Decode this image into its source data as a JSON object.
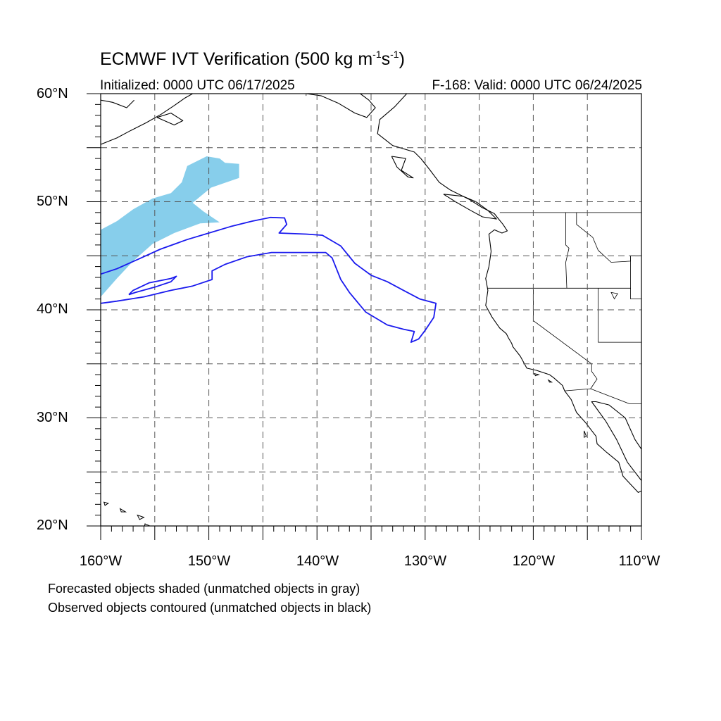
{
  "title": {
    "main": "ECMWF IVT Verification (500 kg m",
    "exp1": "-1",
    "mid": "s",
    "exp2": "-1",
    "end": ")"
  },
  "init_label": "Initialized: 0000 UTC 06/17/2025",
  "valid_label": "F-168: Valid: 0000 UTC 06/24/2025",
  "lat_labels": [
    "60°N",
    "50°N",
    "40°N",
    "30°N",
    "20°N"
  ],
  "lon_labels": [
    "160°W",
    "150°W",
    "140°W",
    "130°W",
    "120°W",
    "110°W"
  ],
  "caption_lines": [
    "Forecasted objects shaded (unmatched objects in gray)",
    "Observed objects contoured (unmatched objects in black)"
  ],
  "map_extent": {
    "lon": [
      -160,
      -110
    ],
    "lat": [
      20,
      60
    ]
  },
  "colors": {
    "forecast_fill": "#87ceeb",
    "observed_contour": "#1a1aee",
    "coastline": "#000000",
    "grid": "#555555"
  },
  "forecast_object": [
    [
      -160,
      47.4
    ],
    [
      -158.5,
      48.2
    ],
    [
      -157,
      49.3
    ],
    [
      -155.2,
      50.3
    ],
    [
      -153.5,
      50.8
    ],
    [
      -152.5,
      51.8
    ],
    [
      -152,
      53.3
    ],
    [
      -150.2,
      54.2
    ],
    [
      -149,
      54.0
    ],
    [
      -148.5,
      53.6
    ],
    [
      -147.2,
      53.5
    ],
    [
      -147.2,
      52.2
    ],
    [
      -149.8,
      51.3
    ],
    [
      -151.5,
      49.9
    ],
    [
      -150.5,
      49.1
    ],
    [
      -149.0,
      48.1
    ],
    [
      -150.8,
      48.0
    ],
    [
      -153.2,
      47.1
    ],
    [
      -155.2,
      46.1
    ],
    [
      -157,
      44.5
    ],
    [
      -158.5,
      42.9
    ],
    [
      -160,
      41.2
    ]
  ],
  "observed_object": [
    [
      -160,
      43.3
    ],
    [
      -158.5,
      43.8
    ],
    [
      -156.5,
      44.7
    ],
    [
      -154.5,
      45.6
    ],
    [
      -152,
      46.5
    ],
    [
      -150,
      47.1
    ],
    [
      -148,
      47.7
    ],
    [
      -146,
      48.2
    ],
    [
      -144.3,
      48.55
    ],
    [
      -143.0,
      48.5
    ],
    [
      -142.8,
      47.9
    ],
    [
      -143.5,
      47.1
    ],
    [
      -141.0,
      47.0
    ],
    [
      -139.5,
      46.9
    ],
    [
      -137.8,
      45.9
    ],
    [
      -136.5,
      44.3
    ],
    [
      -135,
      43.2
    ],
    [
      -133.5,
      42.6
    ],
    [
      -132.0,
      41.8
    ],
    [
      -130.5,
      41.0
    ],
    [
      -129.0,
      40.6
    ],
    [
      -129.2,
      39.3
    ],
    [
      -130.0,
      38.1
    ],
    [
      -130.6,
      37.3
    ],
    [
      -131.3,
      37.0
    ],
    [
      -131.0,
      38.0
    ],
    [
      -132,
      38.2
    ],
    [
      -133.5,
      38.6
    ],
    [
      -135.5,
      39.8
    ],
    [
      -137.0,
      41.6
    ],
    [
      -137.8,
      42.8
    ],
    [
      -138.6,
      44.8
    ],
    [
      -139.2,
      45.3
    ],
    [
      -141,
      45.3
    ],
    [
      -144.2,
      45.3
    ],
    [
      -146.5,
      44.9
    ],
    [
      -148.5,
      44.2
    ],
    [
      -149.7,
      43.6
    ],
    [
      -149.7,
      42.8
    ],
    [
      -151.5,
      42.2
    ],
    [
      -153.5,
      41.8
    ],
    [
      -156,
      41.2
    ],
    [
      -158.5,
      40.8
    ],
    [
      -160,
      40.6
    ]
  ],
  "observed_inner": [
    [
      -157.4,
      41.4
    ],
    [
      -156.8,
      41.6
    ],
    [
      -155,
      42.1
    ],
    [
      -153.5,
      42.6
    ],
    [
      -153.0,
      43.1
    ],
    [
      -153.5,
      42.9
    ],
    [
      -155.5,
      42.5
    ],
    [
      -157.0,
      41.8
    ],
    [
      -157.4,
      41.4
    ]
  ],
  "coastlines": [
    [
      [
        -131.7,
        60
      ],
      [
        -132.8,
        58.8
      ],
      [
        -134.2,
        57.6
      ],
      [
        -134.4,
        56.3
      ],
      [
        -133.0,
        55.2
      ],
      [
        -131.0,
        54.6
      ],
      [
        -130.4,
        54.0
      ],
      [
        -129.6,
        53.0
      ],
      [
        -128.7,
        51.8
      ],
      [
        -127.7,
        51.1
      ],
      [
        -125.9,
        50.2
      ],
      [
        -124.8,
        49.5
      ],
      [
        -123.6,
        48.9
      ],
      [
        -123.2,
        48.4
      ],
      [
        -122.8,
        47.9
      ],
      [
        -122.4,
        47.3
      ],
      [
        -122.9,
        47.1
      ],
      [
        -123.6,
        47.4
      ],
      [
        -124.1,
        47.0
      ],
      [
        -124.0,
        46.2
      ],
      [
        -123.9,
        45.4
      ],
      [
        -124.1,
        44.0
      ],
      [
        -124.4,
        42.9
      ],
      [
        -124.2,
        41.8
      ],
      [
        -124.4,
        40.4
      ],
      [
        -123.8,
        39.3
      ],
      [
        -123.1,
        38.3
      ],
      [
        -122.5,
        37.8
      ],
      [
        -122.3,
        37.4
      ],
      [
        -122.0,
        36.9
      ],
      [
        -121.9,
        36.6
      ],
      [
        -121.2,
        35.7
      ],
      [
        -120.6,
        34.6
      ],
      [
        -119.7,
        34.4
      ],
      [
        -118.5,
        34.0
      ],
      [
        -118.1,
        33.7
      ],
      [
        -117.3,
        33.0
      ],
      [
        -117.1,
        32.5
      ],
      [
        -116.5,
        31.7
      ],
      [
        -116.0,
        30.5
      ],
      [
        -115.2,
        29.6
      ],
      [
        -114.2,
        28.3
      ],
      [
        -114.1,
        27.6
      ],
      [
        -113.2,
        26.8
      ],
      [
        -112.1,
        25.9
      ],
      [
        -111.7,
        24.6
      ],
      [
        -110.3,
        23.1
      ],
      [
        -109.6,
        23.4
      ],
      [
        -110.0,
        24.2
      ],
      [
        -111.3,
        25.9
      ],
      [
        -112.3,
        28.0
      ],
      [
        -113.3,
        29.7
      ],
      [
        -114.6,
        31.5
      ],
      [
        -114.2,
        31.5
      ],
      [
        -113.0,
        31.2
      ],
      [
        -111.5,
        30.0
      ],
      [
        -110.6,
        28.0
      ],
      [
        -110,
        27.1
      ]
    ],
    [
      [
        -133.1,
        54.2
      ],
      [
        -131.8,
        54.0
      ],
      [
        -132.2,
        52.9
      ],
      [
        -131.1,
        52.2
      ],
      [
        -131.6,
        52.3
      ],
      [
        -132.6,
        53.2
      ],
      [
        -133.1,
        54.2
      ]
    ],
    [
      [
        -128.3,
        50.7
      ],
      [
        -126.5,
        50.5
      ],
      [
        -125.3,
        50.0
      ],
      [
        -124.2,
        49.2
      ],
      [
        -123.4,
        48.4
      ],
      [
        -124.7,
        48.6
      ],
      [
        -125.8,
        49.2
      ],
      [
        -127.2,
        50.0
      ],
      [
        -128.3,
        50.7
      ]
    ],
    [
      [
        -160,
        55.3
      ],
      [
        -158.5,
        55.9
      ],
      [
        -157.2,
        56.6
      ],
      [
        -155.8,
        57.3
      ],
      [
        -154.4,
        58.1
      ],
      [
        -153.2,
        58.9
      ],
      [
        -152.2,
        59.6
      ],
      [
        -151.5,
        60
      ]
    ],
    [
      [
        -160,
        59.4
      ],
      [
        -158.9,
        59.2
      ],
      [
        -157.6,
        58.7
      ],
      [
        -156.9,
        59.4
      ]
    ],
    [
      [
        -154.8,
        57.8
      ],
      [
        -153.2,
        57.1
      ],
      [
        -152.4,
        57.5
      ],
      [
        -153.5,
        58.2
      ],
      [
        -154.8,
        57.8
      ]
    ],
    [
      [
        -141,
        60
      ],
      [
        -139.6,
        59.8
      ],
      [
        -138.0,
        59.1
      ],
      [
        -136.5,
        58.2
      ],
      [
        -135.4,
        57.8
      ],
      [
        -134.6,
        58.7
      ],
      [
        -135.2,
        59.4
      ],
      [
        -136.0,
        60
      ]
    ],
    [
      [
        -111.6,
        60
      ],
      [
        -110,
        60
      ]
    ]
  ],
  "islands": [
    [
      [
        -155.9,
        20.2
      ],
      [
        -155.0,
        19.8
      ],
      [
        -155.5,
        19.3
      ],
      [
        -156.0,
        19.7
      ],
      [
        -155.9,
        20.2
      ]
    ],
    [
      [
        -156.6,
        21.0
      ],
      [
        -156.0,
        20.8
      ],
      [
        -156.4,
        20.6
      ],
      [
        -156.6,
        21.0
      ]
    ],
    [
      [
        -158.2,
        21.6
      ],
      [
        -157.7,
        21.3
      ],
      [
        -158.1,
        21.3
      ],
      [
        -158.2,
        21.6
      ]
    ],
    [
      [
        -159.7,
        22.2
      ],
      [
        -159.3,
        22.1
      ],
      [
        -159.6,
        21.9
      ],
      [
        -159.7,
        22.2
      ]
    ],
    [
      [
        -118.6,
        33.5
      ],
      [
        -118.3,
        33.3
      ],
      [
        -118.5,
        33.3
      ],
      [
        -118.6,
        33.5
      ]
    ],
    [
      [
        -119.9,
        34.1
      ],
      [
        -119.5,
        34.0
      ],
      [
        -119.8,
        33.9
      ],
      [
        -119.9,
        34.1
      ]
    ],
    [
      [
        -115.3,
        28.8
      ],
      [
        -115.1,
        28.3
      ],
      [
        -115.3,
        28.2
      ],
      [
        -115.3,
        28.8
      ]
    ]
  ],
  "borders": [
    [
      [
        -123.1,
        49
      ],
      [
        -110,
        49
      ]
    ],
    [
      [
        -124.2,
        42
      ],
      [
        -111,
        42
      ]
    ],
    [
      [
        -120,
        42
      ],
      [
        -120,
        39
      ],
      [
        -114.6,
        35.0
      ]
    ],
    [
      [
        -117.0,
        49
      ],
      [
        -117.0,
        46.0
      ],
      [
        -116.7,
        45.7
      ],
      [
        -117.0,
        44.4
      ],
      [
        -116.9,
        42
      ]
    ],
    [
      [
        -116.0,
        49
      ],
      [
        -116.0,
        47.9
      ],
      [
        -114.5,
        46.7
      ],
      [
        -114.0,
        45.5
      ],
      [
        -112.8,
        44.4
      ],
      [
        -111.0,
        44.5
      ],
      [
        -111,
        45.0
      ],
      [
        -110,
        45
      ]
    ],
    [
      [
        -111,
        45
      ],
      [
        -111,
        41
      ],
      [
        -110,
        41
      ]
    ],
    [
      [
        -114.0,
        42
      ],
      [
        -114.0,
        37.0
      ],
      [
        -110,
        37.0
      ]
    ],
    [
      [
        -114.6,
        35.0
      ],
      [
        -114.6,
        34.3
      ],
      [
        -114.1,
        33.6
      ],
      [
        -114.7,
        32.7
      ]
    ],
    [
      [
        -117.1,
        32.5
      ],
      [
        -114.7,
        32.7
      ],
      [
        -111.1,
        31.3
      ],
      [
        -110,
        31.3
      ]
    ],
    [
      [
        -130,
        56.0
      ],
      [
        -130.0,
        55.3
      ]
    ],
    [
      [
        -141,
        60
      ],
      [
        -141,
        59.8
      ]
    ]
  ],
  "lakes": [
    [
      [
        -112.8,
        41.6
      ],
      [
        -112.2,
        41.5
      ],
      [
        -112.5,
        41.0
      ],
      [
        -112.8,
        41.6
      ]
    ]
  ]
}
